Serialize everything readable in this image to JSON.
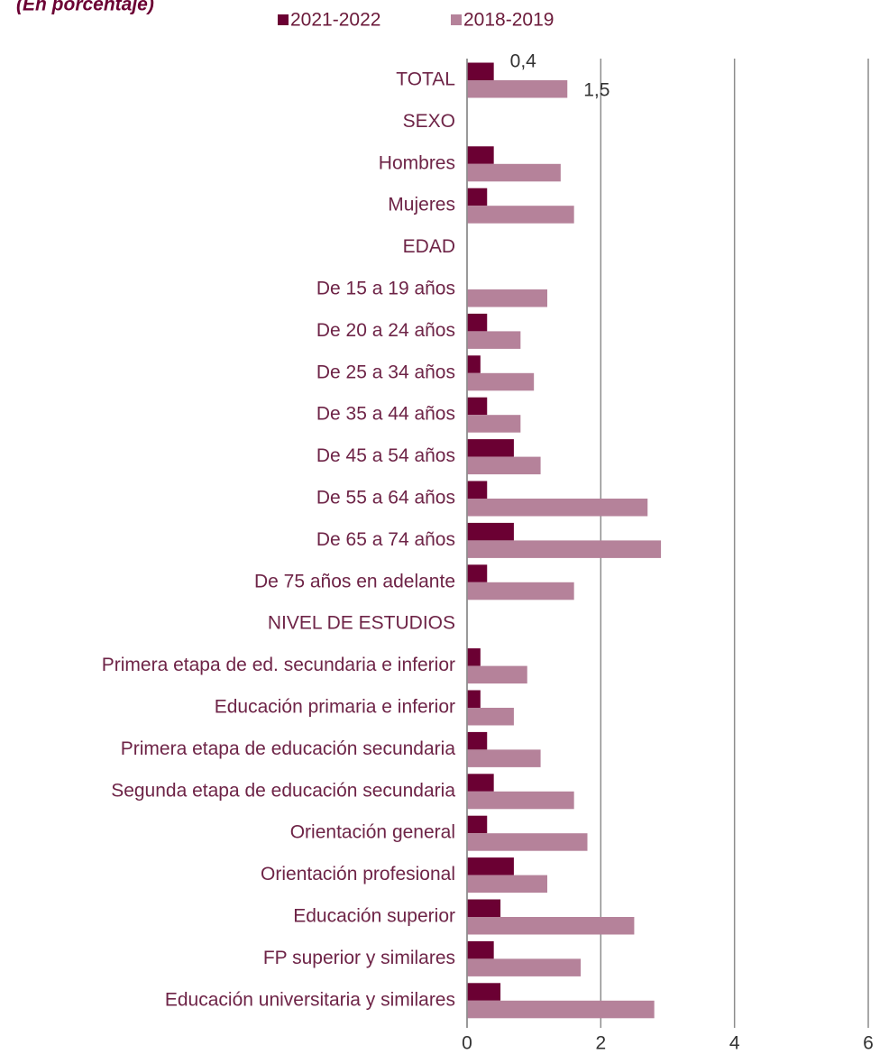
{
  "chart_data": {
    "type": "bar",
    "orientation": "horizontal",
    "subtitle": "(En porcentaje)",
    "categories": [
      "TOTAL",
      "SEXO",
      "Hombres",
      "Mujeres",
      "EDAD",
      "De 15 a 19 años",
      "De 20 a 24 años",
      "De 25 a 34 años",
      "De 35 a 44 años",
      "De 45 a 54 años",
      "De 55 a 64 años",
      "De 65 a 74 años",
      "De 75 años en adelante",
      "NIVEL DE ESTUDIOS",
      "Primera etapa de ed. secundaria e inferior",
      "Educación primaria e inferior",
      "Primera etapa de educación secundaria",
      "Segunda etapa de educación secundaria",
      "Orientación general",
      "Orientación profesional",
      "Educación superior",
      "FP superior y similares",
      "Educación universitaria y similares"
    ],
    "series": [
      {
        "name": "2021-2022",
        "color": "#6b0033",
        "values": [
          0.4,
          null,
          0.4,
          0.3,
          null,
          null,
          0.3,
          0.2,
          0.3,
          0.7,
          0.3,
          0.7,
          0.3,
          null,
          0.2,
          0.2,
          0.3,
          0.4,
          0.3,
          0.7,
          0.5,
          0.4,
          0.5
        ],
        "value_labels": [
          "0,4",
          null,
          null,
          null,
          null,
          null,
          null,
          null,
          null,
          null,
          null,
          null,
          null,
          null,
          null,
          null,
          null,
          null,
          null,
          null,
          null,
          null,
          null
        ]
      },
      {
        "name": "2018-2019",
        "color": "#b5829a",
        "values": [
          1.5,
          null,
          1.4,
          1.6,
          null,
          1.2,
          0.8,
          1.0,
          0.8,
          1.1,
          2.7,
          2.9,
          1.6,
          null,
          0.9,
          0.7,
          1.1,
          1.6,
          1.8,
          1.2,
          2.5,
          1.7,
          2.8
        ],
        "value_labels": [
          "1,5",
          null,
          null,
          null,
          null,
          null,
          null,
          null,
          null,
          null,
          null,
          null,
          null,
          null,
          null,
          null,
          null,
          null,
          null,
          null,
          null,
          null,
          null
        ]
      }
    ],
    "xlim": [
      0,
      6
    ],
    "xticks": [
      0,
      2,
      4,
      6
    ],
    "grid": true
  }
}
